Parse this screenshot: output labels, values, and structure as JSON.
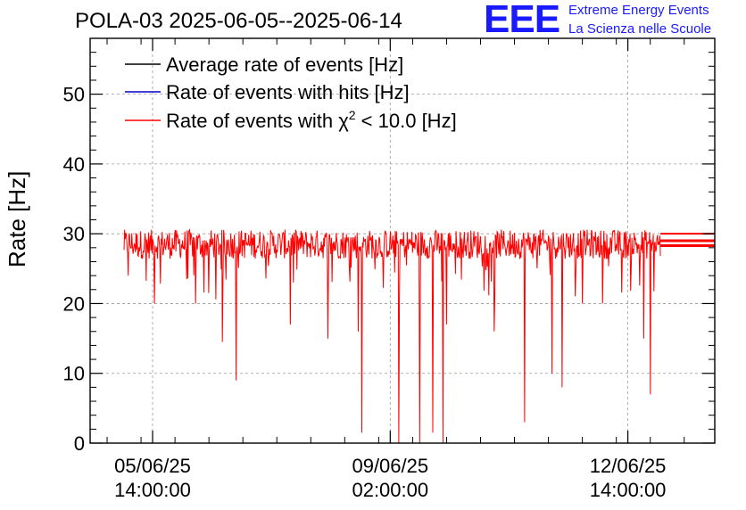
{
  "header": {
    "title": "POLA-03 2025-06-05--2025-06-14",
    "logo_text": "EEE",
    "logo_line1": "Extreme Energy Events",
    "logo_line2": "La Scienza nelle Scuole"
  },
  "chart_data": {
    "type": "line",
    "ylabel": "Rate [Hz]",
    "ylim": [
      0,
      58
    ],
    "yticks": [
      0,
      10,
      20,
      30,
      40,
      50
    ],
    "grid": true,
    "legend_position": "top-left",
    "x_tick_labels": [
      [
        "05/06/25",
        "14:00:00"
      ],
      [
        "09/06/25",
        "02:00:00"
      ],
      [
        "12/06/25",
        "14:00:00"
      ]
    ],
    "series": [
      {
        "name": "Average rate of events [Hz]",
        "color": "#000000",
        "values": [
          28.3
        ]
      },
      {
        "name": "Rate of events with hits [Hz]",
        "color": "#0000cc",
        "values": [
          29.0
        ]
      },
      {
        "name": "Rate of events with χ² < 10.0 [Hz]",
        "color": "#ff0000",
        "mean": 28.5,
        "band": [
          25.5,
          31.0
        ]
      }
    ],
    "legend_labels": {
      "avg": "Average rate of events [Hz]",
      "hits": "Rate of events with hits [Hz]",
      "chi_prefix": "Rate of events with χ",
      "chi_sup": "2",
      "chi_suffix": " < 10.0 [Hz]"
    },
    "time_range_days": [
      0.0,
      9.2
    ],
    "data_span_days": [
      0.5,
      8.4
    ],
    "dips_days_values": [
      [
        0.56,
        24
      ],
      [
        0.95,
        20
      ],
      [
        1.55,
        20
      ],
      [
        1.95,
        14.5
      ],
      [
        2.15,
        9
      ],
      [
        2.95,
        17
      ],
      [
        3.5,
        15
      ],
      [
        3.95,
        16
      ],
      [
        4.0,
        1.5
      ],
      [
        4.55,
        0
      ],
      [
        4.85,
        0
      ],
      [
        5.05,
        1.5
      ],
      [
        5.2,
        0
      ],
      [
        5.25,
        17
      ],
      [
        5.95,
        16
      ],
      [
        6.4,
        3
      ],
      [
        6.8,
        10
      ],
      [
        6.95,
        8
      ],
      [
        7.25,
        20
      ],
      [
        7.55,
        20
      ],
      [
        8.15,
        15
      ],
      [
        8.25,
        7
      ]
    ]
  }
}
